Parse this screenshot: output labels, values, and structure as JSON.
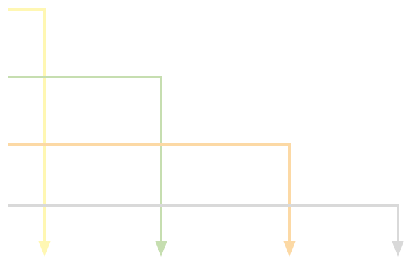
{
  "diagram": {
    "background": "#ffffff",
    "connectors": [
      {
        "name": "yellow-connector",
        "color": "#fff7b3"
      },
      {
        "name": "green-connector",
        "color": "#c6deb0"
      },
      {
        "name": "orange-connector",
        "color": "#fcd9a5"
      },
      {
        "name": "gray-connector",
        "color": "#d9d9d9"
      }
    ]
  }
}
